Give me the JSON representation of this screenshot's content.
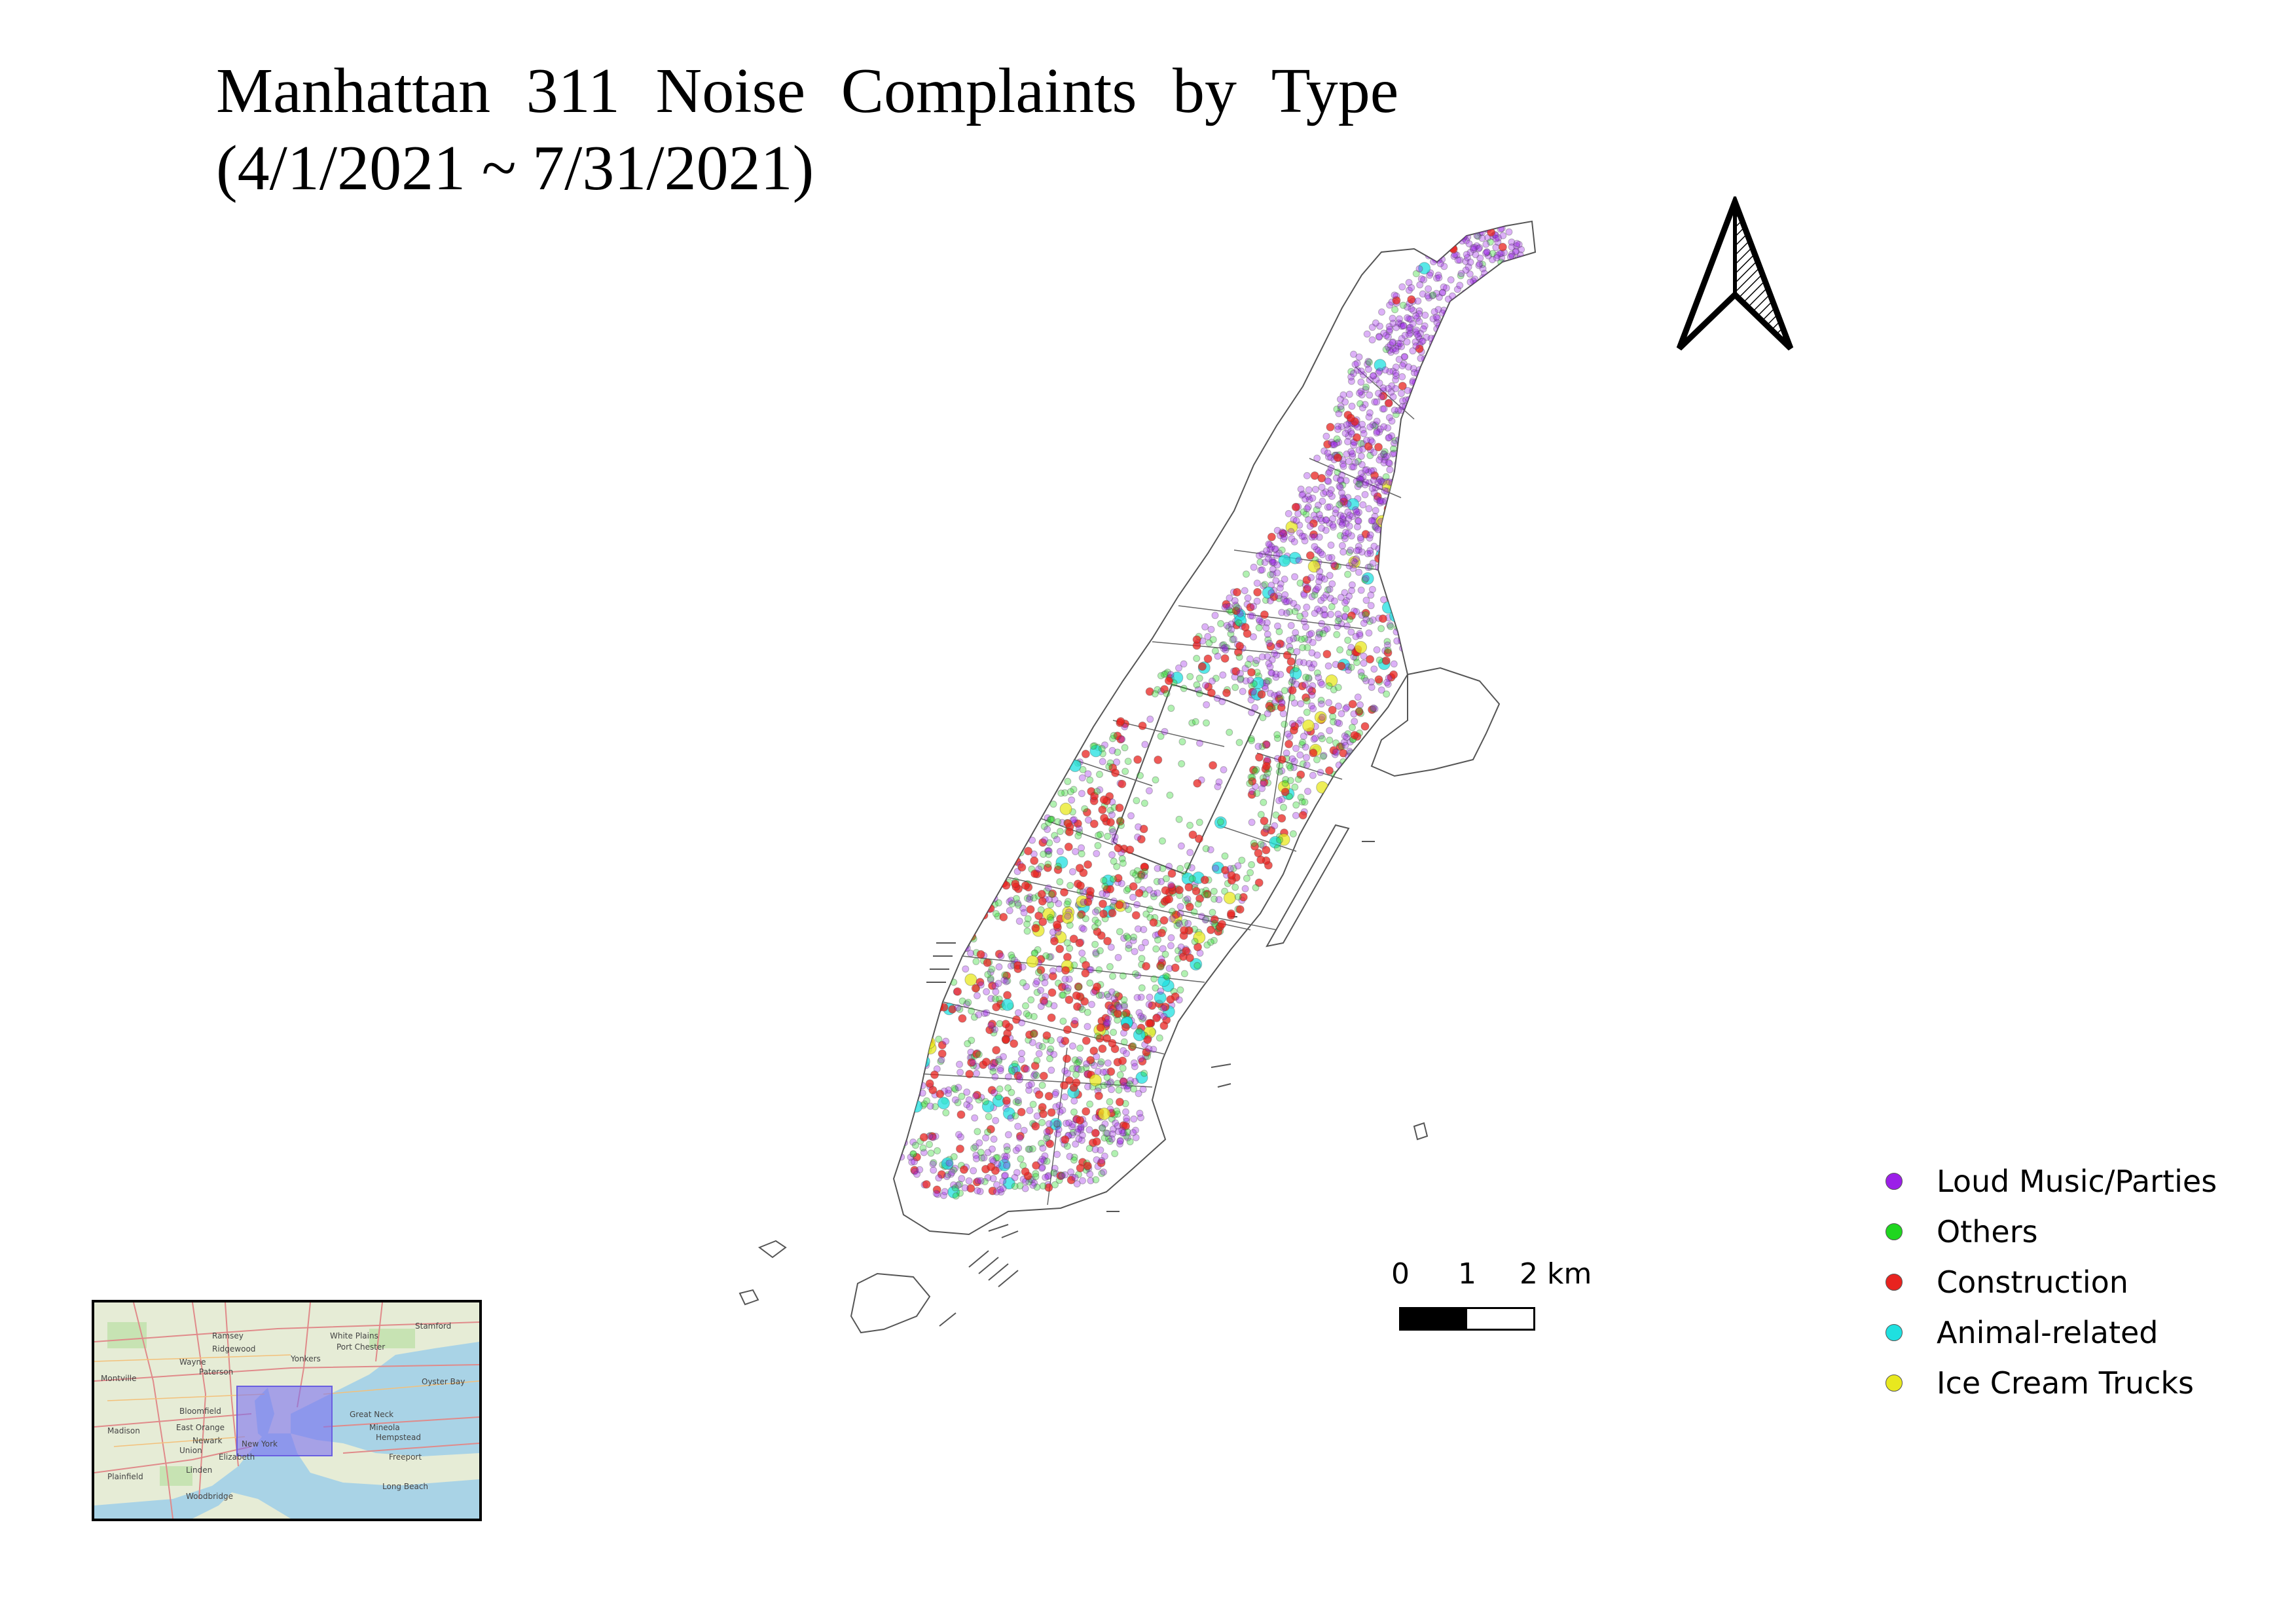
{
  "title": {
    "line1": "Manhattan 311 Noise Complaints by Type",
    "line2": "(4/1/2021 ~ 7/31/2021)"
  },
  "legend": {
    "items": [
      {
        "label": "Loud Music/Parties",
        "color": "#9b1fe8"
      },
      {
        "label": "Others",
        "color": "#1fd61f"
      },
      {
        "label": "Construction",
        "color": "#e8231f"
      },
      {
        "label": "Animal-related",
        "color": "#1fe0e0"
      },
      {
        "label": "Ice Cream Trucks",
        "color": "#e8e81f"
      }
    ]
  },
  "scalebar": {
    "ticks": [
      "0",
      "1",
      "2 km"
    ]
  },
  "north_arrow": {
    "icon": "north-arrow-icon"
  },
  "inset_map": {
    "icon": "inset-locator-map",
    "highlight_color": "#7b6ff0",
    "place_labels": [
      "Paterson",
      "Yonkers",
      "Stamford",
      "Wayne",
      "Montville",
      "Ramsey",
      "White Plains",
      "Port Chester",
      "Bloomfield",
      "Newark",
      "East Orange",
      "Madison",
      "Elizabeth",
      "Union",
      "Plainfield",
      "Linden",
      "New York",
      "Great Neck",
      "Mineola",
      "Hempstead",
      "Freeport",
      "Long Beach",
      "Oyster Bay",
      "Woodbridge",
      "Ridgewood"
    ]
  }
}
